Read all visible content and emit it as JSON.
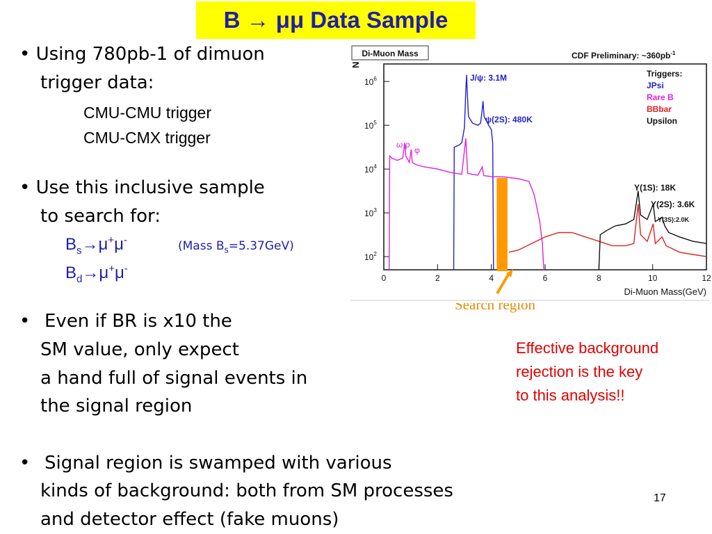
{
  "slide": {
    "title": "B → μμ Data Sample",
    "page_number": "17",
    "bullet1": {
      "line1": "• Using 780pb-1 of dimuon",
      "line2": "trigger data:",
      "sub1": "CMU-CMU trigger",
      "sub2": "CMU-CMX trigger"
    },
    "bullet2": {
      "line1": "• Use this inclusive sample",
      "line2": "to search for:",
      "bs": {
        "base": "B",
        "sub": "s",
        "arrow": "→",
        "mu": "μ",
        "plus": "+",
        "mu2": "μ",
        "minus": "-"
      },
      "bd": {
        "base": "B",
        "sub": "d",
        "arrow": "→",
        "mu": "μ",
        "plus": "+",
        "mu2": "μ",
        "minus": "-"
      },
      "mass_note_pre": "(Mass B",
      "mass_note_sub": "s",
      "mass_note_post": "=5.37GeV)"
    },
    "bullet3": {
      "bullet": "•",
      "line1": "Even if BR is x10 the",
      "line2": "SM value, only expect",
      "line3": "a hand full of signal events in",
      "line4": "the signal region"
    },
    "bullet4": {
      "bullet": "•",
      "line1": "Signal region is swamped with various",
      "line2": "kinds of background: both from SM processes",
      "line3": "and detector effect (fake muons)"
    },
    "callout_red": [
      "Effective background",
      "rejection is the key",
      "to this analysis!!"
    ],
    "search_region_label": "Search region",
    "colors": {
      "title_bg": "#ffff00",
      "title_text": "#1f1fa8",
      "red": "#e00000",
      "orange": "#ff9900"
    }
  },
  "chart_data": {
    "type": "line",
    "panel_label": "Di-Muon Mass",
    "top_right_label": "CDF Preliminary: ~360pb",
    "top_right_sup": "-1",
    "xlabel": "Di-Muon Mass(GeV)",
    "ylabel": "N",
    "xlim": [
      0,
      12
    ],
    "ylim_log10": [
      1.7,
      6.4
    ],
    "y_scale": "log",
    "x_ticks": [
      "0",
      "2",
      "4",
      "6",
      "8",
      "10",
      "12"
    ],
    "y_ticks": [
      {
        "base": "10",
        "exp": "2",
        "v": 2
      },
      {
        "base": "10",
        "exp": "3",
        "v": 3
      },
      {
        "base": "10",
        "exp": "4",
        "v": 4
      },
      {
        "base": "10",
        "exp": "5",
        "v": 5
      },
      {
        "base": "10",
        "exp": "6",
        "v": 6
      }
    ],
    "legend_title": "Triggers:",
    "legend": [
      {
        "name": "JPsi",
        "color": "#2222cc"
      },
      {
        "name": "Rare B",
        "color": "#dd22dd"
      },
      {
        "name": "BBbar",
        "color": "#dd2222"
      },
      {
        "name": "Upsilon",
        "color": "#111111"
      }
    ],
    "annotations": {
      "jpsi": "J/ψ: 3.1M",
      "psi2s": "ψ(2S): 480K",
      "omega_rho": "ω,ρ",
      "phi": "φ",
      "y1s": "Υ(1S): 18K",
      "y2s": "Υ(2S): 3.6K",
      "y3s": "Υ(3S):2.0K"
    },
    "search_region_x": [
      4.2,
      4.6
    ],
    "series": [
      {
        "name": "JPsi",
        "color": "#2222cc",
        "points": [
          [
            2.6,
            1.7
          ],
          [
            2.62,
            4.5
          ],
          [
            2.8,
            4.55
          ],
          [
            2.9,
            4.6
          ],
          [
            3.0,
            4.95
          ],
          [
            3.05,
            5.8
          ],
          [
            3.08,
            6.15
          ],
          [
            3.1,
            5.8
          ],
          [
            3.15,
            5.2
          ],
          [
            3.3,
            5.05
          ],
          [
            3.5,
            5.0
          ],
          [
            3.6,
            5.05
          ],
          [
            3.65,
            5.3
          ],
          [
            3.69,
            5.55
          ],
          [
            3.73,
            5.2
          ],
          [
            3.9,
            5.0
          ],
          [
            4.0,
            4.9
          ],
          [
            4.05,
            4.6
          ],
          [
            4.08,
            1.7
          ]
        ]
      },
      {
        "name": "Rare B",
        "color": "#dd22dd",
        "points": [
          [
            0.2,
            1.7
          ],
          [
            0.22,
            4.3
          ],
          [
            0.3,
            4.25
          ],
          [
            0.5,
            4.2
          ],
          [
            0.7,
            4.25
          ],
          [
            0.78,
            4.6
          ],
          [
            0.82,
            4.3
          ],
          [
            0.95,
            4.15
          ],
          [
            1.02,
            4.45
          ],
          [
            1.06,
            4.15
          ],
          [
            1.2,
            4.1
          ],
          [
            1.5,
            4.05
          ],
          [
            2.0,
            4.0
          ],
          [
            2.5,
            3.92
          ],
          [
            2.9,
            3.88
          ],
          [
            3.05,
            4.7
          ],
          [
            3.12,
            3.9
          ],
          [
            3.5,
            3.86
          ],
          [
            3.66,
            4.05
          ],
          [
            3.72,
            3.85
          ],
          [
            4.0,
            3.83
          ],
          [
            4.5,
            3.82
          ],
          [
            5.0,
            3.78
          ],
          [
            5.4,
            3.72
          ],
          [
            5.6,
            3.4
          ],
          [
            5.8,
            2.8
          ],
          [
            5.9,
            2.3
          ],
          [
            5.95,
            1.7
          ]
        ]
      },
      {
        "name": "BBbar",
        "color": "#dd2222",
        "points": [
          [
            4.65,
            2.1
          ],
          [
            5.0,
            2.15
          ],
          [
            5.5,
            2.3
          ],
          [
            6.0,
            2.45
          ],
          [
            6.5,
            2.55
          ],
          [
            7.0,
            2.55
          ],
          [
            7.5,
            2.45
          ],
          [
            8.0,
            2.35
          ],
          [
            8.5,
            2.25
          ],
          [
            9.0,
            2.25
          ],
          [
            9.3,
            2.3
          ],
          [
            9.46,
            3.2
          ],
          [
            9.55,
            2.5
          ],
          [
            9.8,
            2.35
          ],
          [
            10.02,
            2.75
          ],
          [
            10.1,
            2.3
          ],
          [
            10.35,
            2.45
          ],
          [
            10.5,
            2.25
          ],
          [
            11.0,
            2.1
          ],
          [
            11.5,
            2.05
          ],
          [
            12.0,
            2.0
          ]
        ]
      },
      {
        "name": "Upsilon",
        "color": "#111111",
        "points": [
          [
            8.0,
            1.7
          ],
          [
            8.05,
            2.5
          ],
          [
            8.3,
            2.6
          ],
          [
            8.6,
            2.7
          ],
          [
            9.0,
            2.75
          ],
          [
            9.3,
            2.85
          ],
          [
            9.46,
            3.5
          ],
          [
            9.55,
            2.95
          ],
          [
            9.8,
            2.85
          ],
          [
            10.02,
            3.2
          ],
          [
            10.1,
            2.8
          ],
          [
            10.35,
            2.9
          ],
          [
            10.45,
            2.7
          ],
          [
            10.6,
            2.55
          ],
          [
            11.0,
            2.45
          ],
          [
            11.5,
            2.35
          ],
          [
            12.0,
            2.3
          ]
        ]
      }
    ]
  }
}
